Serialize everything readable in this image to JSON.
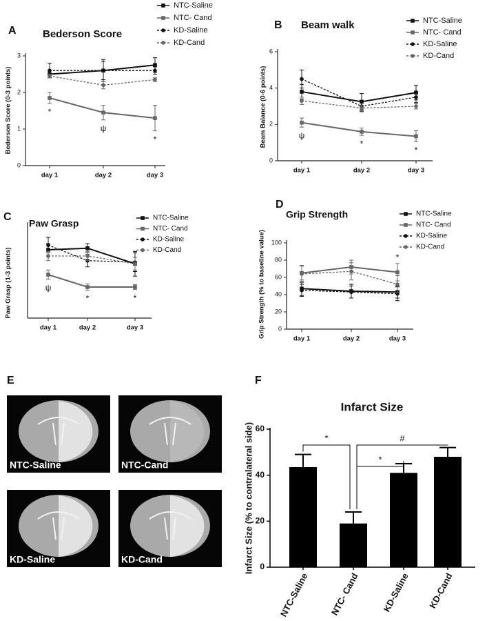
{
  "chart_data": [
    {
      "type": "line",
      "panel": "A",
      "title": "Bederson Score",
      "ylabel": "Bederson Score (0-3 points)",
      "categories": [
        "day 1",
        "day 2",
        "day 3"
      ],
      "ylim": [
        0,
        3
      ],
      "yticks": [
        0,
        1,
        2,
        3
      ],
      "series": [
        {
          "name": "NTC-Saline",
          "color": "#111111",
          "dashed": false,
          "values": [
            2.5,
            2.6,
            2.75
          ],
          "errors": [
            0.1,
            0.25,
            0.2
          ]
        },
        {
          "name": "NTC- Cand",
          "color": "#666666",
          "dashed": false,
          "values": [
            1.85,
            1.45,
            1.3
          ],
          "errors": [
            0.15,
            0.2,
            0.35
          ]
        },
        {
          "name": "KD-Saline",
          "color": "#111111",
          "dashed": true,
          "values": [
            2.6,
            2.6,
            2.6
          ],
          "errors": [
            0.2,
            0.3,
            0.1
          ]
        },
        {
          "name": "KD-Cand",
          "color": "#666666",
          "dashed": true,
          "values": [
            2.45,
            2.2,
            2.35
          ],
          "errors": [
            0.05,
            0.1,
            0.05
          ]
        }
      ],
      "annotations": [
        "*",
        "ψ",
        "*"
      ]
    },
    {
      "type": "line",
      "panel": "B",
      "title": "Beam walk",
      "ylabel": "Beam Balance (0-6 points)",
      "categories": [
        "day 1",
        "day 2",
        "day 3"
      ],
      "ylim": [
        0,
        6
      ],
      "yticks": [
        0,
        2,
        4,
        6
      ],
      "series": [
        {
          "name": "NTC-Saline",
          "color": "#111111",
          "dashed": false,
          "values": [
            3.8,
            3.25,
            3.75
          ],
          "errors": [
            0.4,
            0.45,
            0.4
          ]
        },
        {
          "name": "NTC- Cand",
          "color": "#666666",
          "dashed": false,
          "values": [
            2.1,
            1.6,
            1.35
          ],
          "errors": [
            0.25,
            0.2,
            0.3
          ]
        },
        {
          "name": "KD-Saline",
          "color": "#111111",
          "dashed": true,
          "values": [
            4.5,
            3.0,
            3.5
          ],
          "errors": [
            0.5,
            0.3,
            0.3
          ]
        },
        {
          "name": "KD-Cand",
          "color": "#666666",
          "dashed": true,
          "values": [
            3.3,
            2.9,
            3.0
          ],
          "errors": [
            0.2,
            0.15,
            0.15
          ]
        }
      ],
      "annotations": [
        "ψ",
        "*",
        "*"
      ]
    },
    {
      "type": "line",
      "panel": "C",
      "title": "Paw Grasp",
      "ylabel": "Paw Grasp (1-3 points)",
      "categories": [
        "day 1",
        "day 2",
        "day 3"
      ],
      "ylim": [
        0,
        3
      ],
      "series": [
        {
          "name": "NTC-Saline",
          "color": "#111111",
          "dashed": false,
          "values": [
            2.2,
            2.25,
            1.75
          ],
          "errors": [
            0.2,
            0.15,
            0.4
          ]
        },
        {
          "name": "NTC- Cand",
          "color": "#666666",
          "dashed": false,
          "values": [
            1.4,
            1.0,
            1.0
          ],
          "errors": [
            0.15,
            0.1,
            0.08
          ]
        },
        {
          "name": "KD-Saline",
          "color": "#111111",
          "dashed": true,
          "values": [
            2.35,
            1.85,
            1.8
          ],
          "errors": [
            0.25,
            0.2,
            0.3
          ]
        },
        {
          "name": "KD-Cand",
          "color": "#666666",
          "dashed": true,
          "values": [
            2.0,
            2.0,
            1.75
          ],
          "errors": [
            0.15,
            0.15,
            0.2
          ]
        }
      ],
      "annotations": [
        "ψ",
        "*",
        "*"
      ]
    },
    {
      "type": "line",
      "panel": "D",
      "title": "Grip Strength",
      "ylabel": "Grip Strength (% to baseline value)",
      "categories": [
        "day 1",
        "day 2",
        "day 3"
      ],
      "ylim": [
        0,
        100
      ],
      "yticks": [
        0,
        20,
        40,
        60,
        80,
        100
      ],
      "series": [
        {
          "name": "NTC-Saline",
          "color": "#111111",
          "dashed": false,
          "values": [
            47,
            44,
            43
          ],
          "errors": [
            8,
            8,
            7
          ]
        },
        {
          "name": "NTC- Cand",
          "color": "#666666",
          "dashed": false,
          "values": [
            65,
            72,
            66
          ],
          "errors": [
            8,
            8,
            10
          ]
        },
        {
          "name": "KD-Saline",
          "color": "#111111",
          "dashed": true,
          "values": [
            45,
            43,
            41
          ],
          "errors": [
            7,
            7,
            8
          ]
        },
        {
          "name": "KD-Cand",
          "color": "#666666",
          "dashed": true,
          "values": [
            64,
            67,
            52
          ],
          "errors": [
            10,
            10,
            10
          ]
        }
      ],
      "annotations": [
        null,
        null,
        "*"
      ]
    },
    {
      "type": "bar",
      "panel": "F",
      "title": "Infarct Size",
      "ylabel": "Infarct Size (% to contralateral side)",
      "categories": [
        "NTC-Saline",
        "NTC- Cand",
        "KD-Saline",
        "KD-Cand"
      ],
      "values": [
        43.5,
        19,
        41,
        48
      ],
      "errors": [
        5.5,
        5,
        4,
        4
      ],
      "color": "#000000",
      "ylim": [
        0,
        60
      ],
      "yticks": [
        0,
        20,
        40,
        60
      ],
      "brackets": [
        "*",
        "*",
        "#"
      ]
    }
  ],
  "brain_sections": {
    "panel": "E",
    "labels": [
      "NTC-Saline",
      "NTC-Cand",
      "KD-Saline",
      "KD-Cand"
    ]
  }
}
